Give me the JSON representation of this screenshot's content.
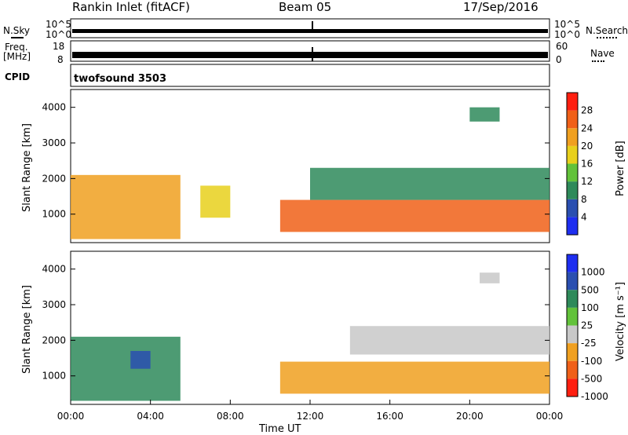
{
  "header": {
    "station": "Rankin Inlet (fitACF)",
    "beam": "Beam 05",
    "date": "17/Sep/2016"
  },
  "strips": {
    "nsky": {
      "label": "N.Sky",
      "tick_top": "10^5",
      "tick_bottom": "10^0"
    },
    "nsearch": {
      "label": "N.Search",
      "tick_top": "10^5",
      "tick_bottom": "10^0"
    },
    "freq": {
      "label_line1": "Freq.",
      "label_line2": "[MHz]",
      "tick_top": "18",
      "tick_bottom": "8"
    },
    "nave": {
      "label": "Nave",
      "tick_top": "60",
      "tick_bottom": "0"
    },
    "cpid": {
      "label": "CPID",
      "value": "twofsound 3503"
    }
  },
  "power_panel": {
    "ylabel": "Slant Range [km]",
    "yticks": [
      "1000",
      "2000",
      "3000",
      "4000"
    ],
    "colorbar_title": "Power [dB]",
    "colorbar_ticks": [
      "4",
      "8",
      "12",
      "16",
      "20",
      "24",
      "28"
    ],
    "colors": [
      "#1e2ef0",
      "#2a4fb0",
      "#2e8a5a",
      "#62c23a",
      "#e8d01c",
      "#f0a020",
      "#f06018",
      "#ff1f10"
    ]
  },
  "velocity_panel": {
    "ylabel": "Slant Range [km]",
    "yticks": [
      "1000",
      "2000",
      "3000",
      "4000"
    ],
    "colorbar_title": "Velocity [m s⁻¹]",
    "colorbar_ticks": [
      "1000",
      "500",
      "100",
      "25",
      "-25",
      "-100",
      "-500",
      "-1000"
    ],
    "colors": [
      "#1e2ef0",
      "#2a4fb0",
      "#2e8a5a",
      "#62c23a",
      "#c8c8c8",
      "#f0a020",
      "#f06018",
      "#ff1f10"
    ]
  },
  "x_axis": {
    "label": "Time UT",
    "ticks": [
      "00:00",
      "04:00",
      "08:00",
      "12:00",
      "16:00",
      "20:00",
      "00:00"
    ]
  },
  "chart_data": {
    "type": "heatmap",
    "title": "Rankin Inlet (fitACF)",
    "subtitle": "Beam 05",
    "xlabel": "Time UT",
    "ylabel": "Slant Range [km]",
    "x_range_hours": [
      0,
      24
    ],
    "y_range_km": [
      200,
      4500
    ],
    "panels": [
      {
        "name": "Power",
        "unit": "dB",
        "color_scale_ticks": [
          4,
          8,
          12,
          16,
          20,
          24,
          28
        ],
        "echo_regions": [
          {
            "t_start": 0.0,
            "t_end": 5.5,
            "r_min": 300,
            "r_max": 2100,
            "level": 24
          },
          {
            "t_start": 6.5,
            "t_end": 8.0,
            "r_min": 900,
            "r_max": 1800,
            "level": 20
          },
          {
            "t_start": 10.5,
            "t_end": 24.0,
            "r_min": 500,
            "r_max": 1400,
            "level": 28
          },
          {
            "t_start": 12.0,
            "t_end": 24.0,
            "r_min": 1400,
            "r_max": 2300,
            "level": 12
          },
          {
            "t_start": 20.0,
            "t_end": 21.5,
            "r_min": 3600,
            "r_max": 4000,
            "level": 12
          }
        ]
      },
      {
        "name": "Velocity",
        "unit": "m s^-1",
        "color_scale_ticks": [
          1000,
          500,
          100,
          25,
          -25,
          -100,
          -500,
          -1000
        ],
        "echo_regions": [
          {
            "t_start": 0.0,
            "t_end": 5.5,
            "r_min": 300,
            "r_max": 2100,
            "level": 100
          },
          {
            "t_start": 3.0,
            "t_end": 4.0,
            "r_min": 1200,
            "r_max": 1700,
            "level": 500
          },
          {
            "t_start": 10.5,
            "t_end": 24.0,
            "r_min": 500,
            "r_max": 1400,
            "level": -100
          },
          {
            "t_start": 14.0,
            "t_end": 24.0,
            "r_min": 1600,
            "r_max": 2400,
            "level": 0
          },
          {
            "t_start": 20.5,
            "t_end": 21.5,
            "r_min": 3600,
            "r_max": 3900,
            "level": -25
          }
        ]
      }
    ]
  }
}
